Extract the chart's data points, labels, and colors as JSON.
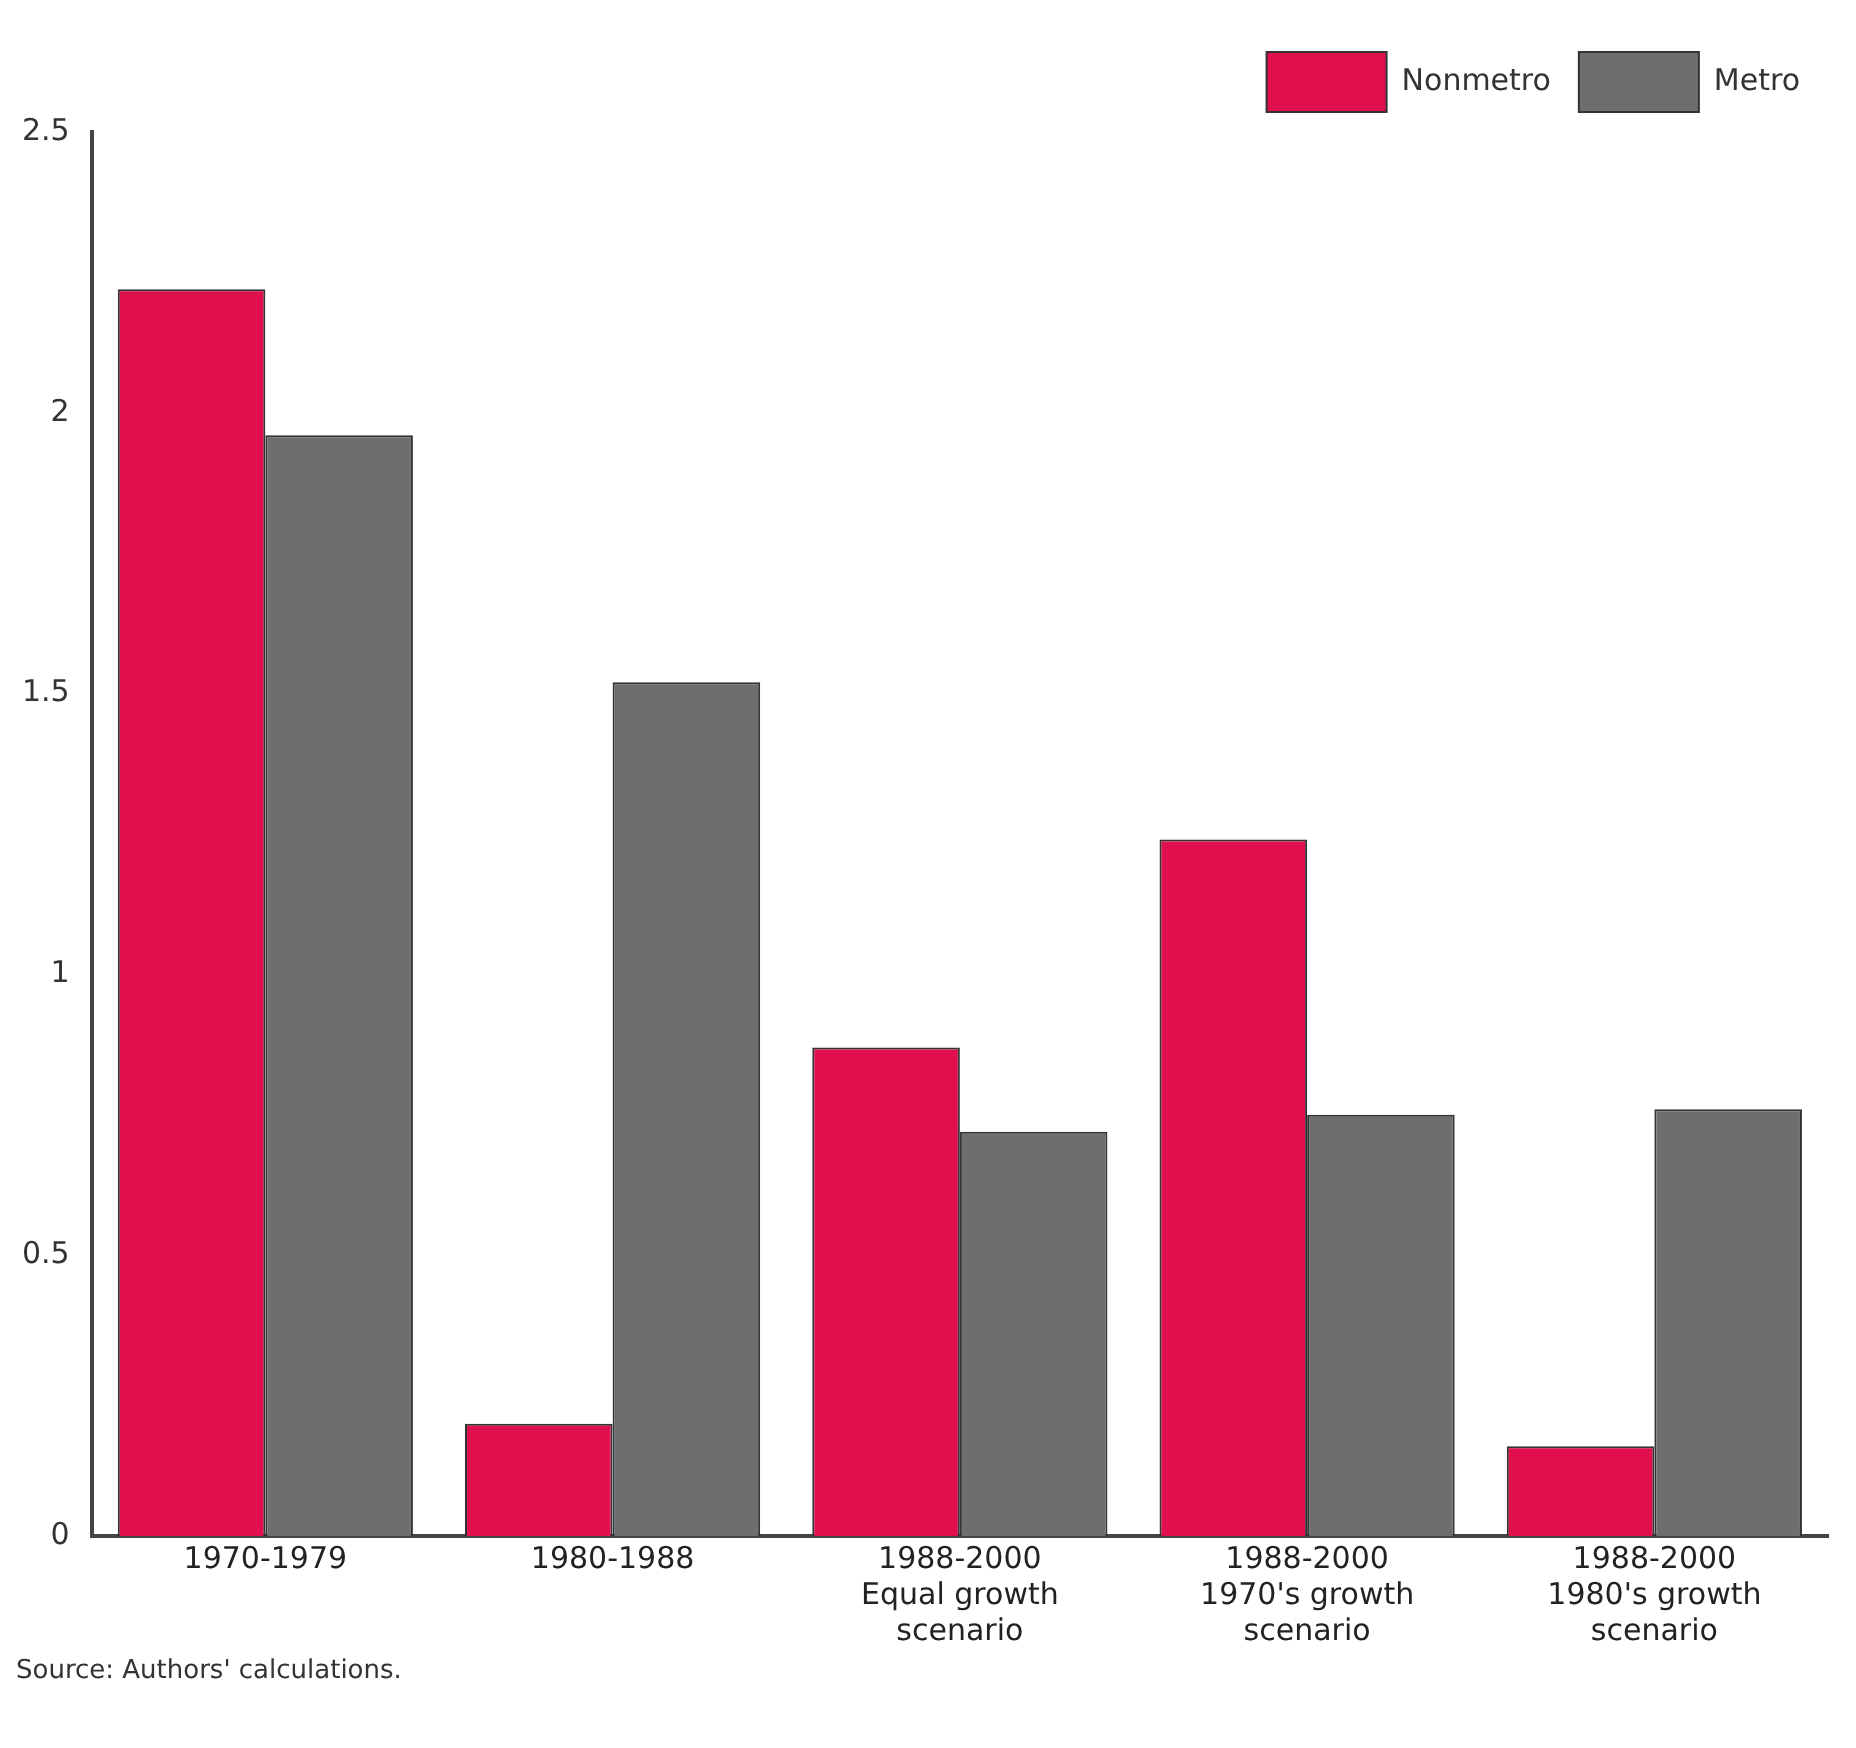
{
  "chart_data": {
    "type": "bar",
    "categories": [
      "1970-1979",
      "1980-1988",
      "1988-2000\nEqual growth\nscenario",
      "1988-2000\n1970's growth\nscenario",
      "1988-2000\n1980's growth\nscenario"
    ],
    "series": [
      {
        "name": "Nonmetro",
        "color": "#e0104f",
        "values": [
          2.22,
          0.2,
          0.87,
          1.24,
          0.16
        ]
      },
      {
        "name": "Metro",
        "color": "#6e6e6e",
        "values": [
          1.96,
          1.52,
          0.72,
          0.75,
          0.76
        ]
      }
    ],
    "ylim": [
      0,
      2.5
    ],
    "yticks": [
      0,
      0.5,
      1,
      1.5,
      2,
      2.5
    ],
    "grid": false,
    "legend": "top right",
    "annotations": [
      "Source: Authors' calculations."
    ]
  }
}
